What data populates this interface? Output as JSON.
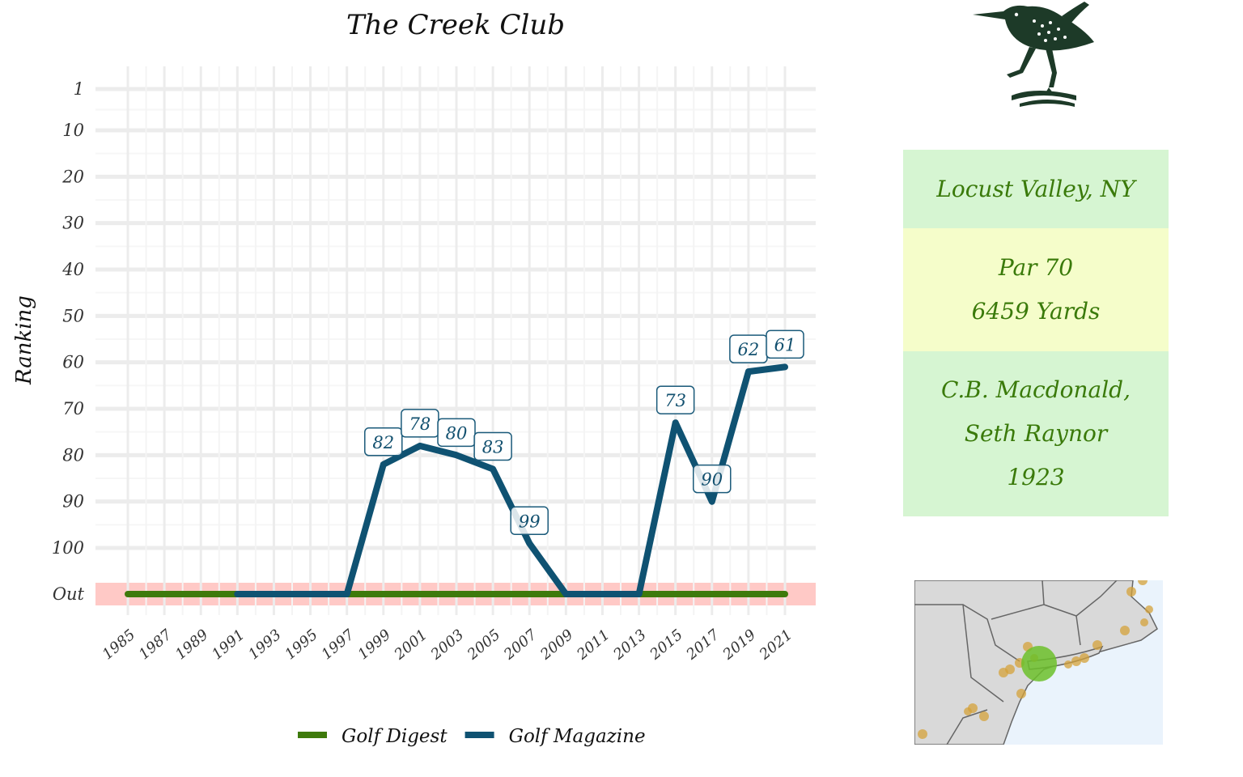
{
  "chart_data": {
    "type": "line",
    "title": "The Creek Club",
    "ylabel": "Ranking",
    "xlabel": "",
    "y_ticks": [
      "1",
      "10",
      "20",
      "30",
      "40",
      "50",
      "60",
      "70",
      "80",
      "90",
      "100",
      "Out"
    ],
    "x_ticks": [
      "1985",
      "1987",
      "1989",
      "1991",
      "1993",
      "1995",
      "1997",
      "1999",
      "2001",
      "2003",
      "2005",
      "2007",
      "2009",
      "2011",
      "2013",
      "2015",
      "2017",
      "2019",
      "2021"
    ],
    "x_range": [
      1985,
      2021
    ],
    "y_reversed": true,
    "out_band_label": "Out",
    "legend_position": "bottom",
    "series": [
      {
        "name": "Golf Digest",
        "color": "#3e7a0b",
        "points": [
          {
            "x": 1985,
            "y": "Out"
          },
          {
            "x": 2021,
            "y": "Out"
          }
        ]
      },
      {
        "name": "Golf Magazine",
        "color": "#0f5272",
        "points": [
          {
            "x": 1991,
            "y": "Out"
          },
          {
            "x": 1997,
            "y": "Out"
          },
          {
            "x": 1999,
            "y": 82
          },
          {
            "x": 2001,
            "y": 78
          },
          {
            "x": 2003,
            "y": 80
          },
          {
            "x": 2005,
            "y": 83
          },
          {
            "x": 2007,
            "y": 99
          },
          {
            "x": 2009,
            "y": "Out"
          },
          {
            "x": 2013,
            "y": "Out"
          },
          {
            "x": 2015,
            "y": 73
          },
          {
            "x": 2017,
            "y": 90
          },
          {
            "x": 2019,
            "y": 62
          },
          {
            "x": 2021,
            "y": 61
          }
        ],
        "labels": [
          {
            "x": 1999,
            "y": 82,
            "text": "82"
          },
          {
            "x": 2001,
            "y": 78,
            "text": "78"
          },
          {
            "x": 2003,
            "y": 80,
            "text": "80"
          },
          {
            "x": 2005,
            "y": 83,
            "text": "83"
          },
          {
            "x": 2007,
            "y": 99,
            "text": "99"
          },
          {
            "x": 2015,
            "y": 73,
            "text": "73"
          },
          {
            "x": 2017,
            "y": 90,
            "text": "90"
          },
          {
            "x": 2019,
            "y": 62,
            "text": "62"
          },
          {
            "x": 2021,
            "y": 61,
            "text": "61"
          }
        ]
      }
    ]
  },
  "info": {
    "location": "Locust Valley, NY",
    "par": "Par 70",
    "yards": "6459 Yards",
    "architect_1": "C.B. Macdonald,",
    "architect_2": "Seth Raynor",
    "year": "1923"
  },
  "colors": {
    "out_band": "#ffc9c6",
    "grid": "#ececec",
    "info_green": "#d6f5d2",
    "info_yellow": "#f5fdca",
    "info_text": "#3a7a0a"
  }
}
